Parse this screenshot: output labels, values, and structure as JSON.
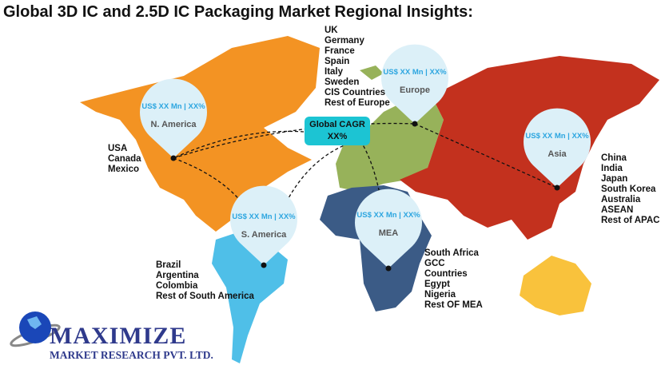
{
  "title": "Global 3D IC and 2.5D IC Packaging Market Regional Insights:",
  "global_cagr": {
    "label": "Global CAGR",
    "value": "XX%"
  },
  "colors": {
    "north_america": "#f39323",
    "europe": "#97b25a",
    "asia": "#c3311e",
    "mea": "#3b5b86",
    "south_america": "#4fbfe8",
    "australia": "#f9c23c",
    "pin": "#dcf0f8",
    "cagr_box": "#1cc4d3"
  },
  "regions": [
    {
      "name": "N. America",
      "value": "US$ XX Mn | XX%",
      "countries": [
        "USA",
        "Canada",
        "Mexico"
      ]
    },
    {
      "name": "Europe",
      "value": "US$ XX Mn | XX%",
      "countries": [
        "UK",
        "Germany",
        "France",
        "Spain",
        "Italy",
        "Sweden",
        "CIS Countries",
        "Rest of Europe"
      ]
    },
    {
      "name": "Asia",
      "value": "US$ XX Mn | XX%",
      "countries": [
        "China",
        "India",
        "Japan",
        "South Korea",
        "Australia",
        "ASEAN",
        "Rest of APAC"
      ]
    },
    {
      "name": "S. America",
      "value": "US$ XX Mn | XX%",
      "countries": [
        "Brazil",
        "Argentina",
        "Colombia",
        "Rest of South America"
      ]
    },
    {
      "name": "MEA",
      "value": "US$ XX Mn | XX%",
      "countries": [
        "South Africa",
        "GCC",
        "Countries",
        "Egypt",
        "Nigeria",
        "Rest OF MEA"
      ]
    }
  ],
  "logo": {
    "name": "MAXIMIZE",
    "subtitle": "MARKET RESEARCH PVT. LTD."
  }
}
